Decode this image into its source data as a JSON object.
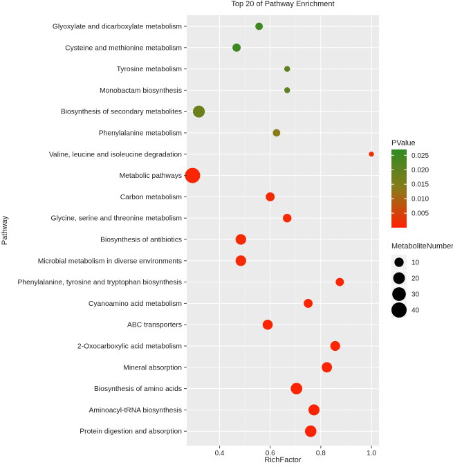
{
  "chart_data": {
    "type": "scatter",
    "title": "Top 20 of Pathway Enrichment",
    "xlabel": "RichFactor",
    "ylabel": "Pathway",
    "xlim": [
      0.27,
      1.03
    ],
    "xticks": [
      0.4,
      0.6,
      0.8,
      1.0
    ],
    "xtick_labels": [
      "0.4",
      "0.6",
      "0.8",
      "1.0"
    ],
    "grid": true,
    "color_legend": {
      "title": "PValue",
      "min": 0.0,
      "max": 0.027,
      "low_color": "#ff2200",
      "mid_color": "#8a7a1a",
      "high_color": "#2e8b22",
      "ticks": [
        0.005,
        0.01,
        0.015,
        0.02,
        0.025
      ],
      "tick_labels": [
        "0.005",
        "0.010",
        "0.015",
        "0.020",
        "0.025"
      ]
    },
    "size_legend": {
      "title": "MetaboliteNumber",
      "values": [
        10,
        20,
        30,
        40
      ],
      "labels": [
        "10",
        "20",
        "30",
        "40"
      ]
    },
    "points": [
      {
        "pathway": "Glyoxylate and dicarboxylate metabolism",
        "rich_factor": 0.556,
        "pvalue": 0.025,
        "metabolite_number": 5
      },
      {
        "pathway": "Cysteine and methionine metabolism",
        "rich_factor": 0.467,
        "pvalue": 0.025,
        "metabolite_number": 7
      },
      {
        "pathway": "Tyrosine metabolism",
        "rich_factor": 0.667,
        "pvalue": 0.02,
        "metabolite_number": 2
      },
      {
        "pathway": "Monobactam biosynthesis",
        "rich_factor": 0.667,
        "pvalue": 0.02,
        "metabolite_number": 2
      },
      {
        "pathway": "Biosynthesis of secondary metabolites",
        "rich_factor": 0.318,
        "pvalue": 0.018,
        "metabolite_number": 21
      },
      {
        "pathway": "Phenylalanine metabolism",
        "rich_factor": 0.625,
        "pvalue": 0.014,
        "metabolite_number": 5
      },
      {
        "pathway": "Valine, leucine and isoleucine degradation",
        "rich_factor": 1.0,
        "pvalue": 0.002,
        "metabolite_number": 1
      },
      {
        "pathway": "Metabolic pathways",
        "rich_factor": 0.293,
        "pvalue": 0.0005,
        "metabolite_number": 40
      },
      {
        "pathway": "Carbon metabolism",
        "rich_factor": 0.6,
        "pvalue": 0.001,
        "metabolite_number": 9
      },
      {
        "pathway": "Glycine, serine and threonine metabolism",
        "rich_factor": 0.667,
        "pvalue": 0.001,
        "metabolite_number": 8
      },
      {
        "pathway": "Biosynthesis of antibiotics",
        "rich_factor": 0.484,
        "pvalue": 0.001,
        "metabolite_number": 15
      },
      {
        "pathway": "Microbial metabolism in diverse environments",
        "rich_factor": 0.484,
        "pvalue": 0.001,
        "metabolite_number": 15
      },
      {
        "pathway": "Phenylalanine, tyrosine and tryptophan biosynthesis",
        "rich_factor": 0.875,
        "pvalue": 0.0005,
        "metabolite_number": 7
      },
      {
        "pathway": "Cyanoamino acid metabolism",
        "rich_factor": 0.75,
        "pvalue": 0.0005,
        "metabolite_number": 9
      },
      {
        "pathway": "ABC transporters",
        "rich_factor": 0.59,
        "pvalue": 0.0005,
        "metabolite_number": 13
      },
      {
        "pathway": "2-Oxocarboxylic acid metabolism",
        "rich_factor": 0.857,
        "pvalue": 0.0003,
        "metabolite_number": 12
      },
      {
        "pathway": "Mineral absorption",
        "rich_factor": 0.824,
        "pvalue": 0.0003,
        "metabolite_number": 14
      },
      {
        "pathway": "Biosynthesis of amino acids",
        "rich_factor": 0.704,
        "pvalue": 0.0002,
        "metabolite_number": 19
      },
      {
        "pathway": "Aminoacyl-tRNA biosynthesis",
        "rich_factor": 0.773,
        "pvalue": 0.0002,
        "metabolite_number": 17
      },
      {
        "pathway": "Protein digestion and absorption",
        "rich_factor": 0.76,
        "pvalue": 0.0001,
        "metabolite_number": 19
      }
    ]
  }
}
